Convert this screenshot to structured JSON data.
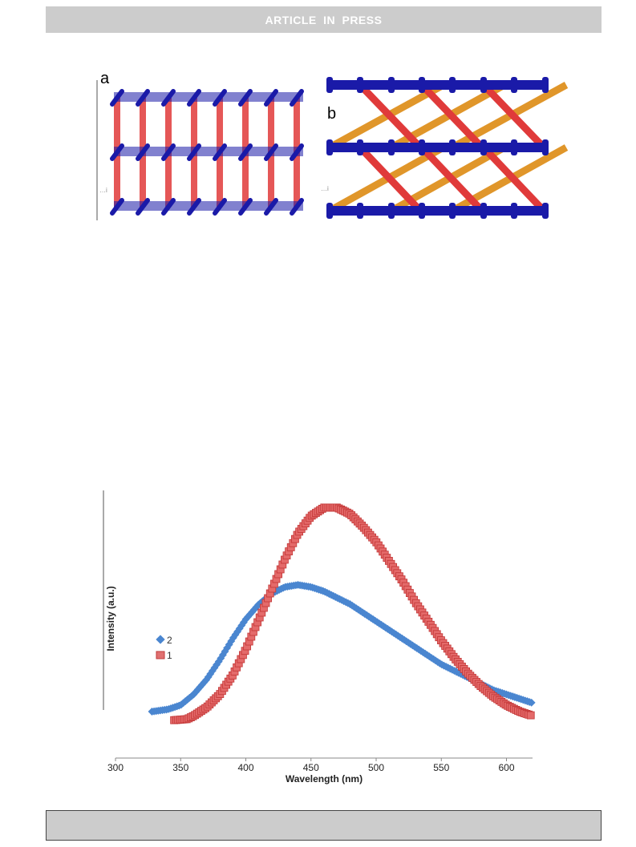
{
  "header": {
    "banner_text": "ARTICLE IN PRESS"
  },
  "figure_top": {
    "panel_a_label": "a",
    "panel_b_label": "b",
    "colors": {
      "node_blue": "#1a1aa8",
      "pillar_red": "#e03a3a",
      "link_orange": "#e0962a"
    }
  },
  "chart_data": {
    "type": "scatter",
    "title": "",
    "xlabel": "Wavelength (nm)",
    "ylabel": "Intensity (a.u.)",
    "xlim": [
      300,
      620
    ],
    "ylim": [
      0,
      1
    ],
    "xticks": [
      "300",
      "350",
      "400",
      "450",
      "500",
      "550",
      "600"
    ],
    "legend_placement": "left-middle",
    "grid": false,
    "series": [
      {
        "name": "2",
        "color": "#4a86d0",
        "marker": "diamond",
        "x": [
          328,
          340,
          350,
          360,
          370,
          380,
          390,
          400,
          410,
          420,
          430,
          440,
          450,
          460,
          470,
          480,
          490,
          500,
          510,
          520,
          530,
          540,
          550,
          560,
          570,
          580,
          590,
          600,
          610,
          620
        ],
        "y": [
          0.0,
          0.01,
          0.03,
          0.08,
          0.15,
          0.24,
          0.34,
          0.43,
          0.5,
          0.55,
          0.58,
          0.59,
          0.58,
          0.56,
          0.53,
          0.5,
          0.46,
          0.42,
          0.38,
          0.34,
          0.3,
          0.26,
          0.22,
          0.19,
          0.16,
          0.13,
          0.1,
          0.08,
          0.06,
          0.04
        ]
      },
      {
        "name": "1",
        "color": "#d94a4a",
        "marker": "square",
        "x": [
          345,
          355,
          360,
          370,
          380,
          390,
          400,
          410,
          420,
          430,
          440,
          450,
          460,
          470,
          480,
          490,
          500,
          510,
          520,
          530,
          540,
          550,
          560,
          570,
          580,
          590,
          600,
          610,
          620
        ],
        "y": [
          -0.04,
          -0.035,
          -0.02,
          0.02,
          0.08,
          0.17,
          0.29,
          0.43,
          0.57,
          0.71,
          0.83,
          0.91,
          0.95,
          0.95,
          0.92,
          0.86,
          0.79,
          0.7,
          0.61,
          0.51,
          0.42,
          0.33,
          0.25,
          0.18,
          0.12,
          0.07,
          0.03,
          0.0,
          -0.02
        ]
      }
    ]
  },
  "footer": {}
}
